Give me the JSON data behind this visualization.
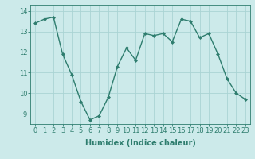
{
  "x": [
    0,
    1,
    2,
    3,
    4,
    5,
    6,
    7,
    8,
    9,
    10,
    11,
    12,
    13,
    14,
    15,
    16,
    17,
    18,
    19,
    20,
    21,
    22,
    23
  ],
  "y": [
    13.4,
    13.6,
    13.7,
    11.9,
    10.9,
    9.6,
    8.7,
    8.9,
    9.8,
    11.3,
    12.2,
    11.6,
    12.9,
    12.8,
    12.9,
    12.5,
    13.6,
    13.5,
    12.7,
    12.9,
    11.9,
    10.7,
    10.0,
    9.7
  ],
  "line_color": "#2e7d6e",
  "marker": "D",
  "marker_size": 2,
  "bg_color": "#cceaea",
  "grid_color": "#aad4d4",
  "xlabel": "Humidex (Indice chaleur)",
  "ylim": [
    8.5,
    14.3
  ],
  "xlim": [
    -0.5,
    23.5
  ],
  "yticks": [
    9,
    10,
    11,
    12,
    13,
    14
  ],
  "xticks": [
    0,
    1,
    2,
    3,
    4,
    5,
    6,
    7,
    8,
    9,
    10,
    11,
    12,
    13,
    14,
    15,
    16,
    17,
    18,
    19,
    20,
    21,
    22,
    23
  ],
  "xlabel_fontsize": 7,
  "tick_fontsize": 6,
  "line_width": 1.0
}
